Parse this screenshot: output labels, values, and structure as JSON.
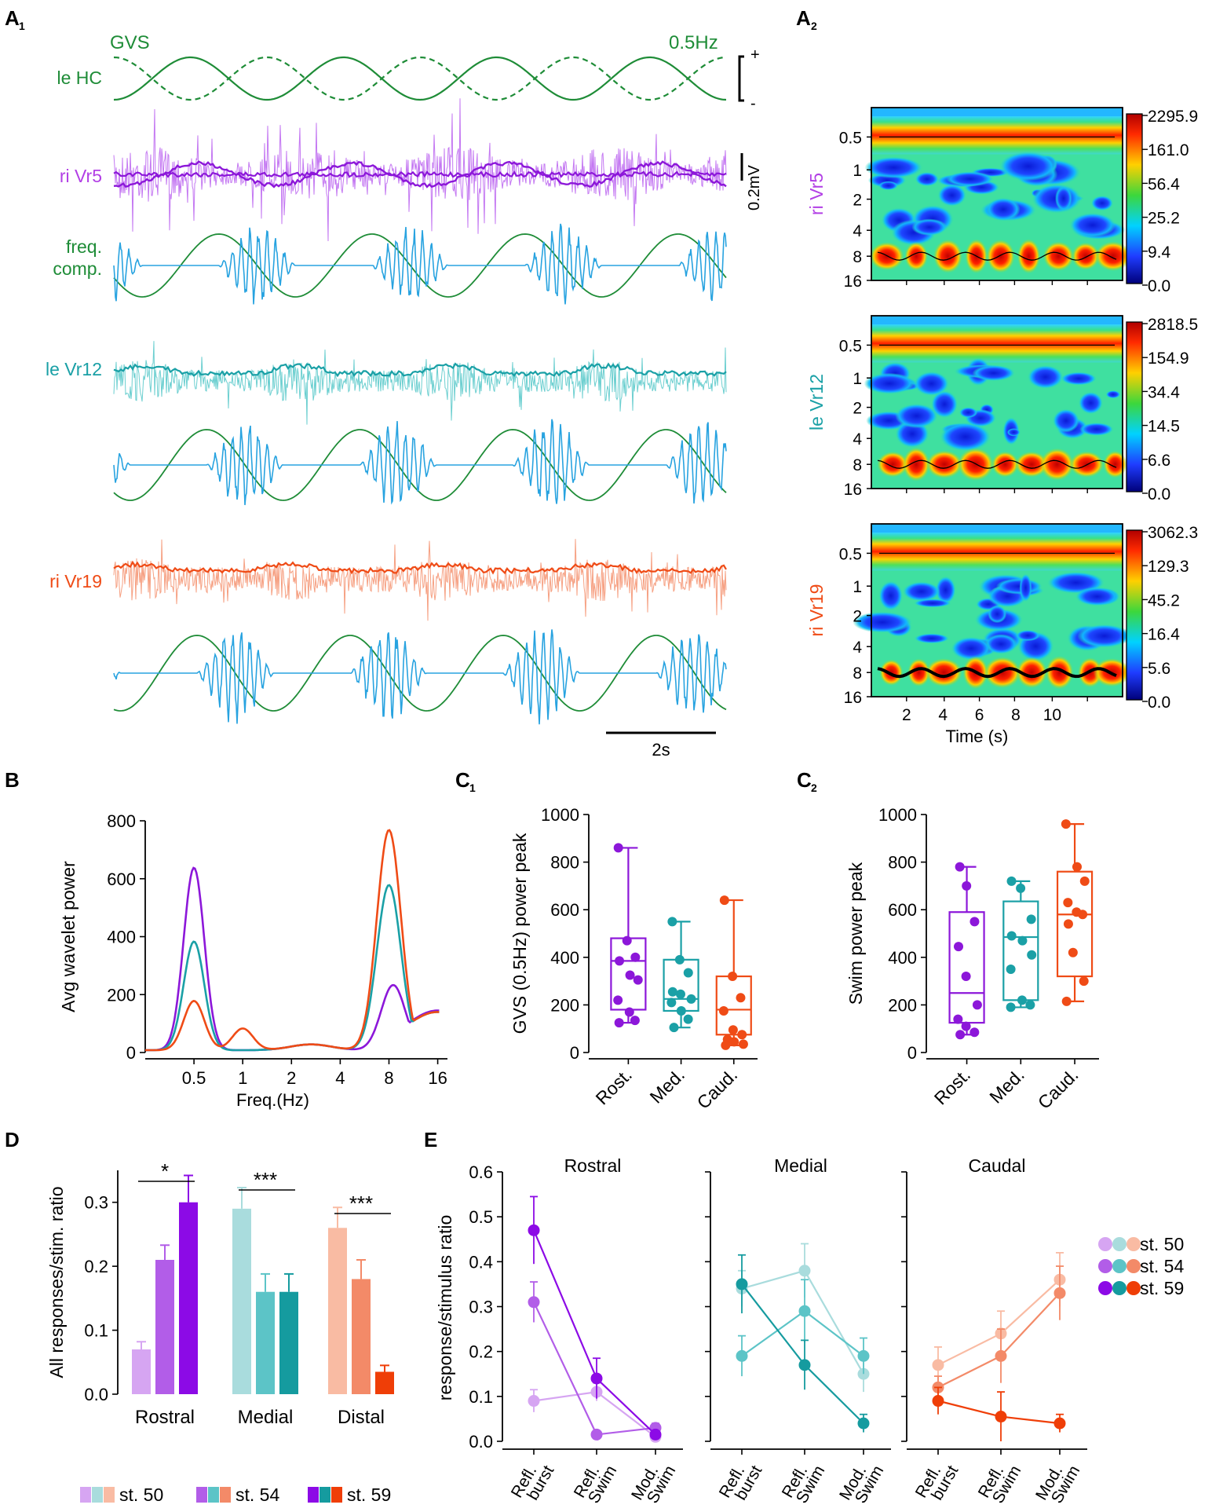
{
  "panel_labels": {
    "A1": "A",
    "A1_sub": "1",
    "A2": "A",
    "A2_sub": "2",
    "B": "B",
    "C1": "C",
    "C1_sub": "1",
    "C2": "C",
    "C2_sub": "2",
    "D": "D",
    "E": "E"
  },
  "colors": {
    "green": "#1e8c37",
    "purple": "#8c17d9",
    "purple_light": "#c478f2",
    "teal": "#1aa0a6",
    "teal_light": "#6ccfd0",
    "orange": "#ef4b16",
    "orange_light": "#f6a082",
    "blue": "#28a3e0",
    "p50": "#d6a5f2",
    "p54": "#b25de8",
    "p59": "#8c0ae6",
    "t50": "#a9dcdd",
    "t54": "#5cc4c7",
    "t59": "#159b9f",
    "o50": "#f9bba3",
    "o54": "#f38a68",
    "o59": "#ef3e07"
  },
  "traces": {
    "gvs_title": "GVS",
    "freq": "0.5Hz",
    "le_hc": "le HC",
    "ri_vr5": "ri Vr5",
    "freq_comp_1": "freq.",
    "freq_comp_2": "comp.",
    "le_vr12": "le Vr12",
    "ri_vr19": "ri Vr19",
    "plus": "+",
    "minus": "-",
    "scale_mv": "0.2mV",
    "scale_time": "2s"
  },
  "wavelet": {
    "y_ticks": [
      "0.5",
      "1",
      "2",
      "4",
      "8",
      "16"
    ],
    "x_ticks": [
      "2",
      "4",
      "6",
      "8",
      "10"
    ],
    "xlabel": "Time (s)",
    "panels": [
      {
        "label": "ri Vr5",
        "color": "#b23fe5",
        "scale": [
          "2295.9",
          "161.0",
          "56.4",
          "25.2",
          "9.4",
          "0.0"
        ]
      },
      {
        "label": "le Vr12",
        "color": "#1aa0a6",
        "scale": [
          "2818.5",
          "154.9",
          "34.4",
          "14.5",
          "6.6",
          "0.0"
        ]
      },
      {
        "label": "ri Vr19",
        "color": "#ef4b16",
        "scale": [
          "3062.3",
          "129.3",
          "45.2",
          "16.4",
          "5.6",
          "0.0"
        ]
      }
    ]
  },
  "chart_data": [
    {
      "panel": "B",
      "type": "line",
      "xlabel": "Freq.(Hz)",
      "ylabel": "Avg wavelet power",
      "x_ticks": [
        "0.5",
        "1",
        "2",
        "4",
        "8",
        "16"
      ],
      "y_ticks": [
        "0",
        "200",
        "400",
        "600",
        "800"
      ],
      "ylim": [
        0,
        800
      ],
      "series": [
        {
          "color": "#8c17d9",
          "peaks": [
            {
              "x": 0.5,
              "y": 630
            },
            {
              "x": 8.5,
              "y": 225
            },
            {
              "x": 16,
              "y": 145
            }
          ]
        },
        {
          "color": "#1aa0a6",
          "peaks": [
            {
              "x": 0.5,
              "y": 375
            },
            {
              "x": 8,
              "y": 570
            },
            {
              "x": 16,
              "y": 140
            }
          ]
        },
        {
          "color": "#ef4b16",
          "peaks": [
            {
              "x": 0.5,
              "y": 170
            },
            {
              "x": 1,
              "y": 75
            },
            {
              "x": 8,
              "y": 760
            },
            {
              "x": 16,
              "y": 140
            }
          ]
        }
      ]
    },
    {
      "panel": "C1",
      "type": "box",
      "ylabel": "GVS (0.5Hz) power peak",
      "categories": [
        "Rost.",
        "Med.",
        "Caud."
      ],
      "ylim": [
        0,
        1000
      ],
      "y_ticks": [
        "0",
        "200",
        "400",
        "600",
        "800",
        "1000"
      ],
      "boxes": [
        {
          "color": "#8c17d9",
          "min": 125,
          "q1": 180,
          "median": 385,
          "q3": 480,
          "max": 860,
          "points": [
            860,
            470,
            400,
            385,
            325,
            305,
            220,
            170,
            135,
            125
          ]
        },
        {
          "color": "#1aa0a6",
          "min": 105,
          "q1": 175,
          "median": 225,
          "q3": 390,
          "max": 550,
          "points": [
            550,
            390,
            335,
            255,
            245,
            225,
            210,
            175,
            140,
            105
          ]
        },
        {
          "color": "#ef4b16",
          "min": 30,
          "q1": 75,
          "median": 180,
          "q3": 320,
          "max": 640,
          "points": [
            640,
            320,
            230,
            175,
            95,
            75,
            55,
            45,
            35,
            30
          ]
        }
      ]
    },
    {
      "panel": "C2",
      "type": "box",
      "ylabel": "Swim power peak",
      "categories": [
        "Rost.",
        "Med.",
        "Caud."
      ],
      "ylim": [
        0,
        1000
      ],
      "y_ticks": [
        "0",
        "200",
        "400",
        "600",
        "800",
        "1000"
      ],
      "boxes": [
        {
          "color": "#8c17d9",
          "min": 75,
          "q1": 125,
          "median": 250,
          "q3": 590,
          "max": 780,
          "points": [
            780,
            700,
            550,
            445,
            320,
            200,
            140,
            110,
            85,
            75
          ]
        },
        {
          "color": "#1aa0a6",
          "min": 190,
          "q1": 220,
          "median": 485,
          "q3": 635,
          "max": 720,
          "points": [
            720,
            690,
            560,
            490,
            470,
            410,
            350,
            220,
            200,
            190
          ]
        },
        {
          "color": "#ef4b16",
          "min": 215,
          "q1": 320,
          "median": 580,
          "q3": 760,
          "max": 960,
          "points": [
            960,
            780,
            720,
            630,
            590,
            580,
            540,
            420,
            300,
            215
          ]
        }
      ]
    },
    {
      "panel": "D",
      "type": "bar",
      "ylabel": "All responses/stim. ratio",
      "categories": [
        "Rostral",
        "Medial",
        "Distal"
      ],
      "y_ticks": [
        "0.0",
        "0.1",
        "0.2",
        "0.3"
      ],
      "ylim": [
        0,
        0.35
      ],
      "groups": [
        {
          "values": [
            0.07,
            0.21,
            0.3
          ],
          "errors": [
            0.012,
            0.023,
            0.042
          ],
          "colors": [
            "#d6a5f2",
            "#b25de8",
            "#8c0ae6"
          ],
          "sig": "*"
        },
        {
          "values": [
            0.29,
            0.16,
            0.16
          ],
          "errors": [
            0.033,
            0.028,
            0.028
          ],
          "colors": [
            "#a9dcdd",
            "#5cc4c7",
            "#159b9f"
          ],
          "sig": "***"
        },
        {
          "values": [
            0.26,
            0.18,
            0.035
          ],
          "errors": [
            0.032,
            0.03,
            0.01
          ],
          "colors": [
            "#f9bba3",
            "#f38a68",
            "#ef3e07"
          ],
          "sig": "***"
        }
      ],
      "legend": [
        "st. 50",
        "st. 54",
        "st. 59"
      ]
    },
    {
      "panel": "E",
      "type": "line",
      "ylabel": "response/stimulus ratio",
      "y_ticks": [
        "0.0",
        "0.1",
        "0.2",
        "0.3",
        "0.4",
        "0.5",
        "0.6"
      ],
      "ylim": [
        0,
        0.6
      ],
      "x_categories": [
        [
          "Refl.",
          "burst"
        ],
        [
          "Refl.",
          "Swim"
        ],
        [
          "Mod.",
          "Swim"
        ]
      ],
      "subplots": [
        {
          "title": "Rostral",
          "series": [
            {
              "color": "#d6a5f2",
              "values": [
                0.09,
                0.11,
                0.01
              ],
              "errors": [
                0.025,
                0.02,
                0.01
              ]
            },
            {
              "color": "#b25de8",
              "values": [
                0.31,
                0.015,
                0.03
              ],
              "errors": [
                0.045,
                0.008,
                0.01
              ]
            },
            {
              "color": "#8c0ae6",
              "values": [
                0.47,
                0.14,
                0.015
              ],
              "errors": [
                0.075,
                0.045,
                0.008
              ]
            }
          ]
        },
        {
          "title": "Medial",
          "series": [
            {
              "color": "#a9dcdd",
              "values": [
                0.34,
                0.38,
                0.15
              ],
              "errors": [
                0.04,
                0.06,
                0.04
              ]
            },
            {
              "color": "#5cc4c7",
              "values": [
                0.19,
                0.29,
                0.19
              ],
              "errors": [
                0.045,
                0.07,
                0.04
              ]
            },
            {
              "color": "#159b9f",
              "values": [
                0.35,
                0.17,
                0.04
              ],
              "errors": [
                0.065,
                0.055,
                0.02
              ]
            }
          ]
        },
        {
          "title": "Caudal",
          "series": [
            {
              "color": "#f9bba3",
              "values": [
                0.17,
                0.24,
                0.36
              ],
              "errors": [
                0.04,
                0.05,
                0.06
              ]
            },
            {
              "color": "#f38a68",
              "values": [
                0.12,
                0.19,
                0.33
              ],
              "errors": [
                0.025,
                0.06,
                0.06
              ]
            },
            {
              "color": "#ef3e07",
              "values": [
                0.09,
                0.055,
                0.04
              ],
              "errors": [
                0.03,
                0.055,
                0.02
              ]
            }
          ]
        }
      ],
      "legend": [
        "st. 50",
        "st. 54",
        "st. 59"
      ]
    }
  ]
}
